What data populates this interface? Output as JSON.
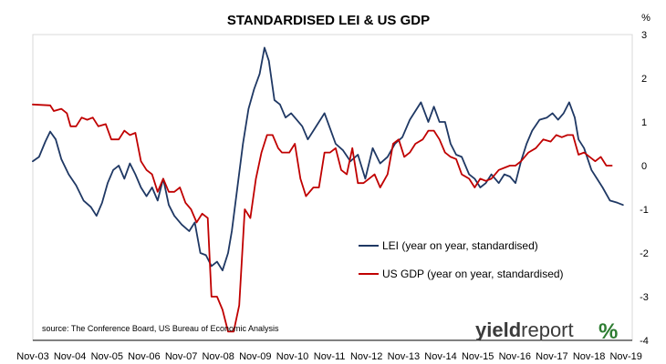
{
  "chart_data": {
    "type": "line",
    "title": "STANDARDISED LEI & US GDP",
    "yunit": "%",
    "ylim": [
      -4,
      3
    ],
    "yticks": [
      3,
      2,
      1,
      0,
      -1,
      -2,
      -3,
      -4
    ],
    "xlim": [
      2003.833,
      2020.0
    ],
    "xticks": [
      {
        "label": "Nov-03",
        "t": 2003.833
      },
      {
        "label": "Nov-04",
        "t": 2004.833
      },
      {
        "label": "Nov-05",
        "t": 2005.833
      },
      {
        "label": "Nov-06",
        "t": 2006.833
      },
      {
        "label": "Nov-07",
        "t": 2007.833
      },
      {
        "label": "Nov-08",
        "t": 2008.833
      },
      {
        "label": "Nov-09",
        "t": 2009.833
      },
      {
        "label": "Nov-10",
        "t": 2010.833
      },
      {
        "label": "Nov-11",
        "t": 2011.833
      },
      {
        "label": "Nov-12",
        "t": 2012.833
      },
      {
        "label": "Nov-13",
        "t": 2013.833
      },
      {
        "label": "Nov-14",
        "t": 2014.833
      },
      {
        "label": "Nov-15",
        "t": 2015.833
      },
      {
        "label": "Nov-16",
        "t": 2016.833
      },
      {
        "label": "Nov-17",
        "t": 2017.833
      },
      {
        "label": "Nov-18",
        "t": 2018.833
      },
      {
        "label": "Nov-19",
        "t": 2019.833
      }
    ],
    "grid": false,
    "legend_position": "bottom-right",
    "series": [
      {
        "name": "LEI (year on year, standardised)",
        "color": "#1f3864",
        "points": [
          [
            2003.83,
            0.1
          ],
          [
            2004.0,
            0.2
          ],
          [
            2004.17,
            0.55
          ],
          [
            2004.3,
            0.78
          ],
          [
            2004.45,
            0.6
          ],
          [
            2004.6,
            0.15
          ],
          [
            2004.8,
            -0.2
          ],
          [
            2005.0,
            -0.45
          ],
          [
            2005.2,
            -0.8
          ],
          [
            2005.4,
            -0.95
          ],
          [
            2005.55,
            -1.15
          ],
          [
            2005.7,
            -0.85
          ],
          [
            2005.85,
            -0.4
          ],
          [
            2006.0,
            -0.1
          ],
          [
            2006.15,
            0.0
          ],
          [
            2006.3,
            -0.3
          ],
          [
            2006.45,
            0.05
          ],
          [
            2006.6,
            -0.2
          ],
          [
            2006.75,
            -0.5
          ],
          [
            2006.9,
            -0.7
          ],
          [
            2007.05,
            -0.5
          ],
          [
            2007.2,
            -0.8
          ],
          [
            2007.35,
            -0.3
          ],
          [
            2007.5,
            -0.9
          ],
          [
            2007.65,
            -1.15
          ],
          [
            2007.85,
            -1.35
          ],
          [
            2008.05,
            -1.5
          ],
          [
            2008.2,
            -1.3
          ],
          [
            2008.35,
            -2.0
          ],
          [
            2008.5,
            -2.05
          ],
          [
            2008.65,
            -2.3
          ],
          [
            2008.8,
            -2.2
          ],
          [
            2008.95,
            -2.4
          ],
          [
            2009.1,
            -2.0
          ],
          [
            2009.2,
            -1.5
          ],
          [
            2009.35,
            -0.5
          ],
          [
            2009.5,
            0.5
          ],
          [
            2009.65,
            1.3
          ],
          [
            2009.8,
            1.75
          ],
          [
            2009.95,
            2.1
          ],
          [
            2010.08,
            2.7
          ],
          [
            2010.2,
            2.4
          ],
          [
            2010.35,
            1.5
          ],
          [
            2010.5,
            1.4
          ],
          [
            2010.65,
            1.1
          ],
          [
            2010.8,
            1.2
          ],
          [
            2010.95,
            1.05
          ],
          [
            2011.1,
            0.9
          ],
          [
            2011.25,
            0.6
          ],
          [
            2011.4,
            0.8
          ],
          [
            2011.55,
            1.0
          ],
          [
            2011.7,
            1.2
          ],
          [
            2011.85,
            0.85
          ],
          [
            2012.0,
            0.5
          ],
          [
            2012.2,
            0.35
          ],
          [
            2012.4,
            0.1
          ],
          [
            2012.6,
            0.25
          ],
          [
            2012.8,
            -0.3
          ],
          [
            2013.0,
            0.4
          ],
          [
            2013.2,
            0.05
          ],
          [
            2013.4,
            0.2
          ],
          [
            2013.6,
            0.5
          ],
          [
            2013.8,
            0.65
          ],
          [
            2014.0,
            1.05
          ],
          [
            2014.15,
            1.25
          ],
          [
            2014.3,
            1.45
          ],
          [
            2014.5,
            1.0
          ],
          [
            2014.65,
            1.35
          ],
          [
            2014.8,
            1.0
          ],
          [
            2014.95,
            1.0
          ],
          [
            2015.1,
            0.5
          ],
          [
            2015.25,
            0.25
          ],
          [
            2015.4,
            0.2
          ],
          [
            2015.6,
            -0.2
          ],
          [
            2015.75,
            -0.3
          ],
          [
            2015.9,
            -0.5
          ],
          [
            2016.05,
            -0.4
          ],
          [
            2016.2,
            -0.2
          ],
          [
            2016.4,
            -0.4
          ],
          [
            2016.55,
            -0.2
          ],
          [
            2016.7,
            -0.25
          ],
          [
            2016.85,
            -0.4
          ],
          [
            2017.0,
            0.1
          ],
          [
            2017.15,
            0.5
          ],
          [
            2017.3,
            0.8
          ],
          [
            2017.5,
            1.05
          ],
          [
            2017.7,
            1.1
          ],
          [
            2017.85,
            1.2
          ],
          [
            2018.0,
            1.05
          ],
          [
            2018.15,
            1.2
          ],
          [
            2018.3,
            1.45
          ],
          [
            2018.45,
            1.1
          ],
          [
            2018.55,
            0.6
          ],
          [
            2018.7,
            0.4
          ],
          [
            2018.9,
            -0.1
          ],
          [
            2019.05,
            -0.3
          ],
          [
            2019.2,
            -0.5
          ],
          [
            2019.4,
            -0.8
          ],
          [
            2019.6,
            -0.85
          ],
          [
            2019.75,
            -0.9
          ]
        ]
      },
      {
        "name": "US GDP (year on year, standardised)",
        "color": "#c00000",
        "points": [
          [
            2003.83,
            1.4
          ],
          [
            2004.3,
            1.38
          ],
          [
            2004.4,
            1.25
          ],
          [
            2004.6,
            1.3
          ],
          [
            2004.75,
            1.2
          ],
          [
            2004.85,
            0.9
          ],
          [
            2005.0,
            0.9
          ],
          [
            2005.15,
            1.1
          ],
          [
            2005.3,
            1.05
          ],
          [
            2005.45,
            1.1
          ],
          [
            2005.6,
            0.9
          ],
          [
            2005.8,
            0.95
          ],
          [
            2005.95,
            0.6
          ],
          [
            2006.15,
            0.6
          ],
          [
            2006.3,
            0.8
          ],
          [
            2006.45,
            0.7
          ],
          [
            2006.6,
            0.75
          ],
          [
            2006.75,
            0.1
          ],
          [
            2006.9,
            -0.1
          ],
          [
            2007.05,
            -0.2
          ],
          [
            2007.2,
            -0.6
          ],
          [
            2007.35,
            -0.3
          ],
          [
            2007.5,
            -0.6
          ],
          [
            2007.65,
            -0.6
          ],
          [
            2007.8,
            -0.5
          ],
          [
            2007.95,
            -0.85
          ],
          [
            2008.1,
            -1.0
          ],
          [
            2008.25,
            -1.3
          ],
          [
            2008.4,
            -1.1
          ],
          [
            2008.55,
            -1.2
          ],
          [
            2008.65,
            -3.0
          ],
          [
            2008.8,
            -3.0
          ],
          [
            2008.95,
            -3.3
          ],
          [
            2009.1,
            -3.8
          ],
          [
            2009.25,
            -3.8
          ],
          [
            2009.4,
            -3.2
          ],
          [
            2009.55,
            -1.0
          ],
          [
            2009.7,
            -1.2
          ],
          [
            2009.85,
            -0.3
          ],
          [
            2010.0,
            0.3
          ],
          [
            2010.15,
            0.7
          ],
          [
            2010.3,
            0.7
          ],
          [
            2010.45,
            0.4
          ],
          [
            2010.55,
            0.3
          ],
          [
            2010.75,
            0.3
          ],
          [
            2010.9,
            0.5
          ],
          [
            2011.05,
            -0.3
          ],
          [
            2011.2,
            -0.7
          ],
          [
            2011.4,
            -0.5
          ],
          [
            2011.55,
            -0.5
          ],
          [
            2011.7,
            0.3
          ],
          [
            2011.85,
            0.3
          ],
          [
            2012.0,
            0.4
          ],
          [
            2012.15,
            -0.1
          ],
          [
            2012.3,
            -0.2
          ],
          [
            2012.45,
            0.4
          ],
          [
            2012.6,
            -0.4
          ],
          [
            2012.75,
            -0.4
          ],
          [
            2012.9,
            -0.3
          ],
          [
            2013.05,
            -0.2
          ],
          [
            2013.2,
            -0.5
          ],
          [
            2013.4,
            -0.2
          ],
          [
            2013.55,
            0.5
          ],
          [
            2013.7,
            0.6
          ],
          [
            2013.85,
            0.2
          ],
          [
            2014.0,
            0.3
          ],
          [
            2014.15,
            0.5
          ],
          [
            2014.35,
            0.6
          ],
          [
            2014.5,
            0.8
          ],
          [
            2014.65,
            0.8
          ],
          [
            2014.8,
            0.6
          ],
          [
            2014.95,
            0.3
          ],
          [
            2015.1,
            0.2
          ],
          [
            2015.25,
            0.15
          ],
          [
            2015.4,
            -0.2
          ],
          [
            2015.6,
            -0.3
          ],
          [
            2015.75,
            -0.5
          ],
          [
            2015.9,
            -0.3
          ],
          [
            2016.05,
            -0.35
          ],
          [
            2016.2,
            -0.3
          ],
          [
            2016.4,
            -0.1
          ],
          [
            2016.55,
            -0.05
          ],
          [
            2016.7,
            0.0
          ],
          [
            2016.85,
            0.0
          ],
          [
            2017.0,
            0.1
          ],
          [
            2017.2,
            0.3
          ],
          [
            2017.4,
            0.4
          ],
          [
            2017.6,
            0.6
          ],
          [
            2017.8,
            0.55
          ],
          [
            2017.95,
            0.7
          ],
          [
            2018.1,
            0.65
          ],
          [
            2018.25,
            0.7
          ],
          [
            2018.4,
            0.7
          ],
          [
            2018.55,
            0.25
          ],
          [
            2018.7,
            0.3
          ],
          [
            2018.85,
            0.2
          ],
          [
            2019.0,
            0.1
          ],
          [
            2019.15,
            0.2
          ],
          [
            2019.3,
            0.0
          ],
          [
            2019.45,
            0.0
          ]
        ]
      }
    ],
    "annotations": [
      {
        "text": "source: The Conference Board, US Bureau of Economic Analysis"
      }
    ]
  },
  "brand": {
    "logo_bold": "yield",
    "logo_regular": "report",
    "logo_symbol": "%"
  }
}
